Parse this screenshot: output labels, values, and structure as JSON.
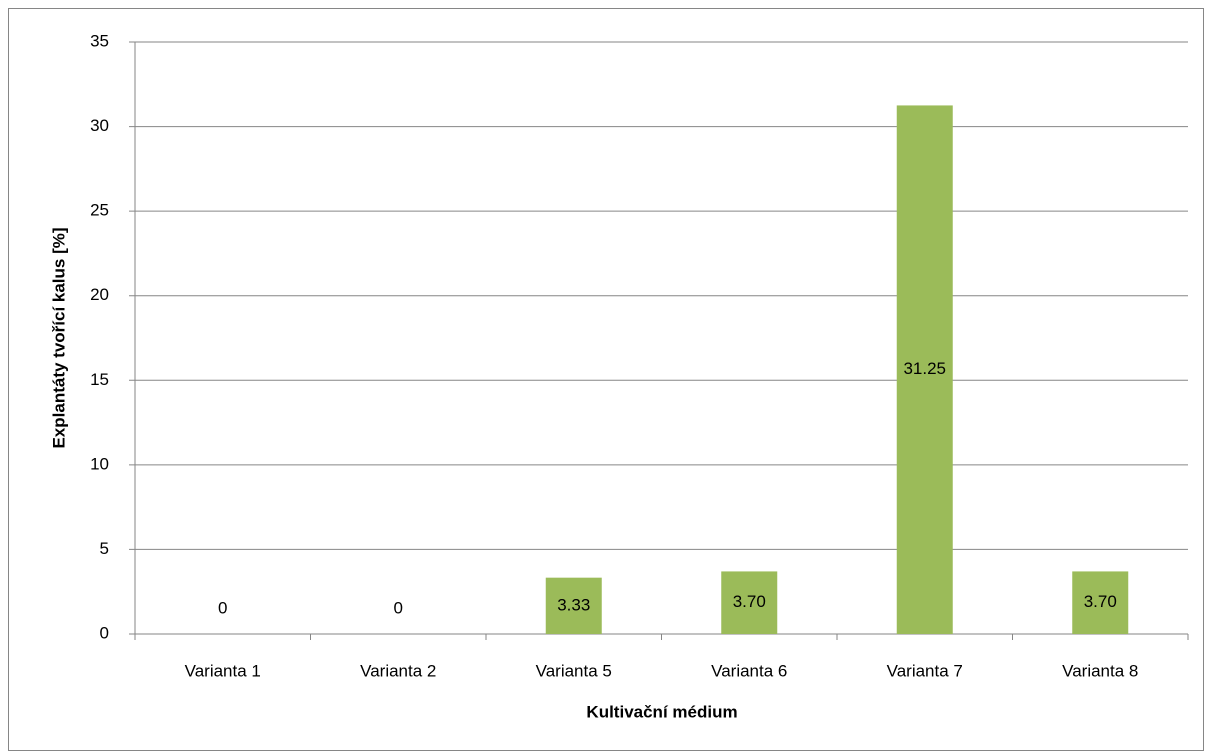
{
  "chart_data": {
    "type": "bar",
    "x_label": "Kultivační médium",
    "y_label": "Explantáty tvořící kalus [%]",
    "categories": [
      "Varianta 1",
      "Varianta 2",
      "Varianta 5",
      "Varianta 6",
      "Varianta 7",
      "Varianta 8"
    ],
    "values": [
      0,
      0,
      3.33,
      3.7,
      31.25,
      3.7
    ],
    "value_labels": [
      "0",
      "0",
      "3.33",
      "3.70",
      "31.25",
      "3.70"
    ],
    "color": "#9bbb59",
    "ylim": [
      0,
      35
    ],
    "yticks": [
      0,
      5,
      10,
      15,
      20,
      25,
      30,
      35
    ],
    "grid": true
  }
}
